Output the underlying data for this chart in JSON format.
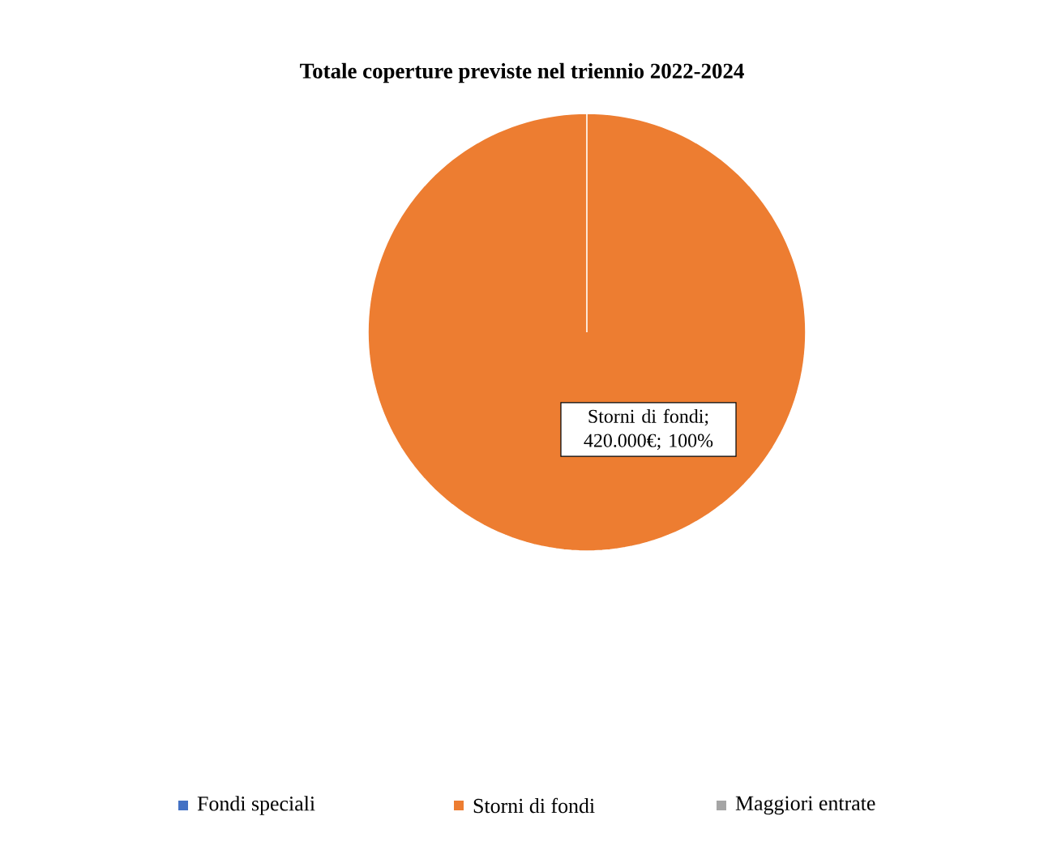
{
  "chart_data": {
    "type": "pie",
    "title": "Totale coperture previste nel triennio 2022-2024",
    "categories": [
      "Fondi speciali",
      "Storni di fondi",
      "Maggiori entrate"
    ],
    "values": [
      0,
      420000,
      0
    ],
    "colors": [
      "#4472c4",
      "#ed7d31",
      "#a5a5a5"
    ],
    "value_labels": [
      null,
      "Storni di fondi; 420.000€; 100%",
      null
    ],
    "legend": "bottom"
  }
}
